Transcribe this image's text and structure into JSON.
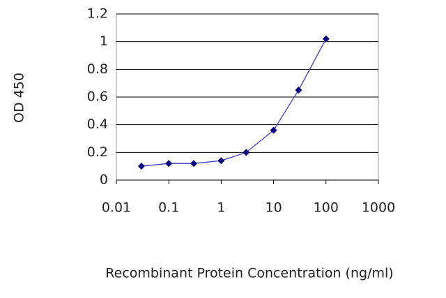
{
  "chart_data": {
    "type": "line",
    "x_label": "Recombinant Protein Concentration (ng/ml)",
    "y_label": "OD 450",
    "x": [
      0.03,
      0.1,
      0.3,
      1,
      3,
      10,
      30,
      100
    ],
    "values": [
      0.1,
      0.12,
      0.12,
      0.14,
      0.2,
      0.36,
      0.65,
      1.02
    ],
    "line_color": "#3a3acc",
    "marker_color": "#000080",
    "xscale": "log",
    "xlim": [
      0.01,
      1000
    ],
    "xticks": [
      0.01,
      0.1,
      1,
      10,
      100,
      1000
    ],
    "ylim": [
      0,
      1.2
    ],
    "yticks": [
      0,
      0.2,
      0.4,
      0.6,
      0.8,
      1,
      1.2
    ],
    "grid": true
  }
}
